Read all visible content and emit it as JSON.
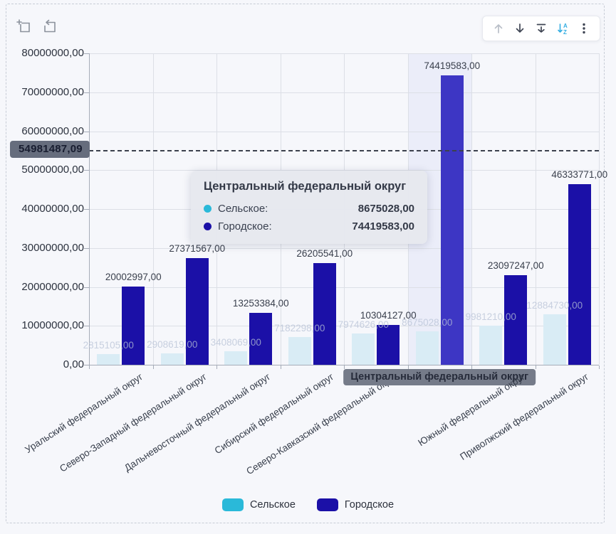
{
  "toolbar": {
    "icons": [
      "sort-ascending-icon",
      "sort-descending-icon",
      "move-to-bottom-icon",
      "sort-alphabetical-icon",
      "more-menu-icon"
    ],
    "accent_color": "#35aee2"
  },
  "top_left_tools": {
    "icons": [
      "zoom-selection-icon",
      "reset-zoom-icon"
    ]
  },
  "chart_data": {
    "type": "bar",
    "categories": [
      "Уральский федеральный округ",
      "Северо-Западный федеральный округ",
      "Дальневосточный федеральный округ",
      "Сибирский федеральный округ",
      "Северо-Кавказский федеральный округ",
      "Центральный федеральный округ",
      "Южный федеральный округ",
      "Приволжский федеральный округ"
    ],
    "series": [
      {
        "name": "Сельское",
        "color": "#2ab9d9",
        "dimmed_color": "#d9ecf5",
        "values": [
          2815105,
          2908619,
          3408069,
          7182298,
          7974626,
          8675028,
          9981210,
          12884730
        ],
        "labels": [
          "2815105,00",
          "2908619,00",
          "3408069,00",
          "7182298,00",
          "7974626,00",
          "8675028,00",
          "9981210,00",
          "12884730,00"
        ]
      },
      {
        "name": "Городское",
        "color": "#1b10a7",
        "highlight_color": "#3d36c4",
        "values": [
          20002997,
          27371567,
          13253384,
          26205541,
          10304127,
          74419583,
          23097247,
          46333771
        ],
        "labels": [
          "20002997,00",
          "27371567,00",
          "13253384,00",
          "26205541,00",
          "10304127,00",
          "74419583,00",
          "23097247,00",
          "46333771,00"
        ]
      }
    ],
    "ylim": [
      0,
      80000000
    ],
    "yticks": [
      "80000000,00",
      "70000000,00",
      "60000000,00",
      "50000000,00",
      "40000000,00",
      "30000000,00",
      "20000000,00",
      "10000000,00",
      "0,00"
    ],
    "reference_line": {
      "value": 54981487.09,
      "label": "54981487,09"
    },
    "highlighted_index": 5,
    "highlighted_category": "Центральный федеральный округ",
    "grid": true,
    "legend_position": "bottom"
  },
  "tooltip": {
    "title": "Центральный федеральный округ",
    "rows": [
      {
        "label": "Сельское:",
        "value": "8675028,00",
        "color": "#2ab9d9"
      },
      {
        "label": "Городское:",
        "value": "74419583,00",
        "color": "#1b10a7"
      }
    ]
  },
  "legend": {
    "items": [
      {
        "label": "Сельское",
        "color": "#2ab9d9"
      },
      {
        "label": "Городское",
        "color": "#1b10a7"
      }
    ]
  }
}
